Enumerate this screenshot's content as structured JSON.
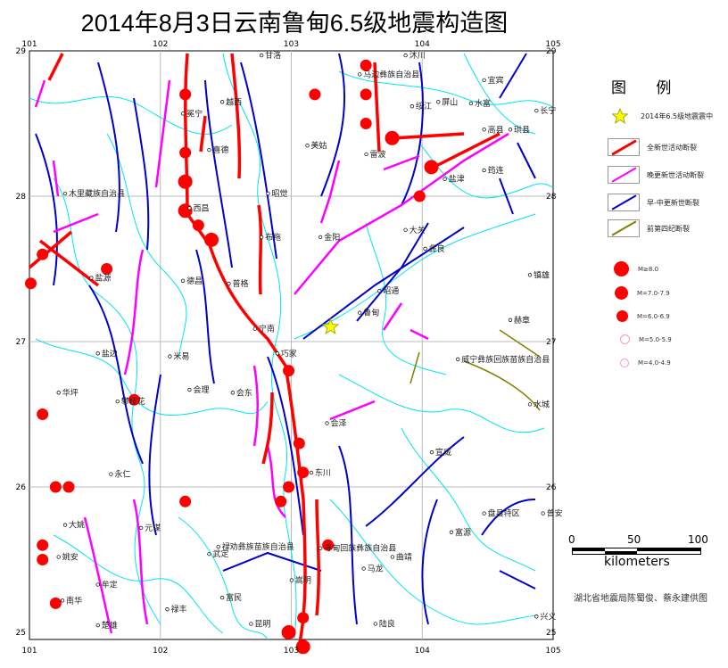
{
  "title": "2014年8月3日云南鲁甸6.5级地震构造图",
  "axes": {
    "lon_ticks": [
      "101",
      "102",
      "103",
      "104",
      "105"
    ],
    "lat_ticks": [
      "29",
      "28",
      "27",
      "26",
      "25"
    ]
  },
  "legend": {
    "title": "图  例",
    "epicenter": {
      "label": "2014年6.5级地震震中",
      "color": "#ffff00"
    },
    "faults": [
      {
        "label": "全新世活动断裂",
        "color": "#ff0000"
      },
      {
        "label": "晚更新世活动断裂",
        "color": "#ff00ff"
      },
      {
        "label": "早-中更新世断裂",
        "color": "#0000cc"
      },
      {
        "label": "前第四纪断裂",
        "color": "#808000"
      }
    ],
    "magnitudes": [
      {
        "label": "M≥8.0",
        "filled": true
      },
      {
        "label": "M=7.0-7.9",
        "filled": true
      },
      {
        "label": "M=6.0-6.9",
        "filled": true
      },
      {
        "label": "M=5.0-5.9",
        "filled": false
      },
      {
        "label": "M=4.0-4.9",
        "filled": false
      }
    ]
  },
  "scale_bar": {
    "ticks": [
      "0",
      "50",
      "100"
    ],
    "unit": "kilometers"
  },
  "credit": "湖北省地震局陈蜀俊、蔡永建供图",
  "epicenter": {
    "lon": 103.3,
    "lat": 27.1
  },
  "earthquakes": [
    {
      "lon": 103.57,
      "lat": 28.9,
      "m": "6.0-6.9"
    },
    {
      "lon": 103.18,
      "lat": 28.7,
      "m": "6.0-6.9"
    },
    {
      "lon": 103.57,
      "lat": 28.7,
      "m": "6.0-6.9"
    },
    {
      "lon": 102.19,
      "lat": 28.7,
      "m": "6.0-6.9"
    },
    {
      "lon": 103.57,
      "lat": 28.5,
      "m": "6.0-6.9"
    },
    {
      "lon": 103.77,
      "lat": 28.4,
      "m": "7.0-7.9"
    },
    {
      "lon": 102.19,
      "lat": 28.3,
      "m": "6.0-6.9"
    },
    {
      "lon": 104.07,
      "lat": 28.2,
      "m": "7.0-7.9"
    },
    {
      "lon": 102.19,
      "lat": 28.1,
      "m": "7.0-7.9"
    },
    {
      "lon": 103.98,
      "lat": 28.0,
      "m": "6.0-6.9"
    },
    {
      "lon": 102.19,
      "lat": 27.9,
      "m": "7.0-7.9"
    },
    {
      "lon": 102.29,
      "lat": 27.8,
      "m": "6.0-6.9"
    },
    {
      "lon": 102.39,
      "lat": 27.7,
      "m": "7.0-7.9"
    },
    {
      "lon": 101.1,
      "lat": 27.6,
      "m": "6.0-6.9"
    },
    {
      "lon": 101.59,
      "lat": 27.5,
      "m": "6.0-6.9"
    },
    {
      "lon": 101.01,
      "lat": 27.4,
      "m": "6.0-6.9"
    },
    {
      "lon": 102.98,
      "lat": 26.8,
      "m": "6.0-6.9"
    },
    {
      "lon": 101.8,
      "lat": 26.6,
      "m": "6.0-6.9"
    },
    {
      "lon": 101.1,
      "lat": 26.5,
      "m": "6.0-6.9"
    },
    {
      "lon": 103.06,
      "lat": 26.3,
      "m": "6.0-6.9"
    },
    {
      "lon": 103.09,
      "lat": 26.1,
      "m": "6.0-6.9"
    },
    {
      "lon": 101.2,
      "lat": 26.0,
      "m": "6.0-6.9"
    },
    {
      "lon": 101.3,
      "lat": 26.0,
      "m": "6.0-6.9"
    },
    {
      "lon": 102.98,
      "lat": 26.0,
      "m": "6.0-6.9"
    },
    {
      "lon": 102.19,
      "lat": 25.9,
      "m": "6.0-6.9"
    },
    {
      "lon": 102.92,
      "lat": 25.9,
      "m": "6.0-6.9"
    },
    {
      "lon": 101.1,
      "lat": 25.6,
      "m": "6.0-6.9"
    },
    {
      "lon": 101.1,
      "lat": 25.5,
      "m": "6.0-6.9"
    },
    {
      "lon": 103.28,
      "lat": 25.6,
      "m": "6.0-6.9"
    },
    {
      "lon": 101.2,
      "lat": 25.2,
      "m": "6.0-6.9"
    },
    {
      "lon": 103.09,
      "lat": 25.1,
      "m": "6.0-6.9"
    },
    {
      "lon": 102.98,
      "lat": 25.0,
      "m": "7.0-7.9"
    },
    {
      "lon": 103.09,
      "lat": 24.9,
      "m": "7.0-7.9"
    }
  ],
  "places": [
    {
      "name": "甘洛",
      "lon": 102.8,
      "lat": 28.95
    },
    {
      "name": "沐川",
      "lon": 103.9,
      "lat": 28.95
    },
    {
      "name": "马边彝族自治县",
      "lon": 103.55,
      "lat": 28.82
    },
    {
      "name": "宜宾",
      "lon": 104.5,
      "lat": 28.78
    },
    {
      "name": "越西",
      "lon": 102.5,
      "lat": 28.63
    },
    {
      "name": "屏山",
      "lon": 104.15,
      "lat": 28.63
    },
    {
      "name": "冕宁",
      "lon": 102.2,
      "lat": 28.55
    },
    {
      "name": "绥江",
      "lon": 103.95,
      "lat": 28.6
    },
    {
      "name": "水富",
      "lon": 104.4,
      "lat": 28.62
    },
    {
      "name": "长宁",
      "lon": 104.9,
      "lat": 28.57
    },
    {
      "name": "雷波",
      "lon": 103.6,
      "lat": 28.27
    },
    {
      "name": "高县",
      "lon": 104.5,
      "lat": 28.44
    },
    {
      "name": "珙县",
      "lon": 104.7,
      "lat": 28.44
    },
    {
      "name": "喜德",
      "lon": 102.4,
      "lat": 28.3
    },
    {
      "name": "美姑",
      "lon": 103.15,
      "lat": 28.33
    },
    {
      "name": "筠连",
      "lon": 104.5,
      "lat": 28.16
    },
    {
      "name": "盐津",
      "lon": 104.2,
      "lat": 28.1
    },
    {
      "name": "昭觉",
      "lon": 102.85,
      "lat": 28.0
    },
    {
      "name": "木里藏族自治县",
      "lon": 101.3,
      "lat": 28.0
    },
    {
      "name": "西昌",
      "lon": 102.25,
      "lat": 27.9
    },
    {
      "name": "布拖",
      "lon": 102.8,
      "lat": 27.7
    },
    {
      "name": "金阳",
      "lon": 103.25,
      "lat": 27.7
    },
    {
      "name": "大关",
      "lon": 103.9,
      "lat": 27.75
    },
    {
      "name": "彝良",
      "lon": 104.05,
      "lat": 27.62
    },
    {
      "name": "盐源",
      "lon": 101.5,
      "lat": 27.42
    },
    {
      "name": "德昌",
      "lon": 102.2,
      "lat": 27.4
    },
    {
      "name": "普格",
      "lon": 102.55,
      "lat": 27.38
    },
    {
      "name": "昭通",
      "lon": 103.7,
      "lat": 27.33
    },
    {
      "name": "镇雄",
      "lon": 104.85,
      "lat": 27.44
    },
    {
      "name": "鲁甸",
      "lon": 103.55,
      "lat": 27.18
    },
    {
      "name": "宁南",
      "lon": 102.75,
      "lat": 27.07
    },
    {
      "name": "巧家",
      "lon": 102.92,
      "lat": 26.9
    },
    {
      "name": "赫章",
      "lon": 104.7,
      "lat": 27.13
    },
    {
      "name": "盐边",
      "lon": 101.55,
      "lat": 26.9
    },
    {
      "name": "米易",
      "lon": 102.1,
      "lat": 26.88
    },
    {
      "name": "威宁彝族回族苗族自治县",
      "lon": 104.3,
      "lat": 26.86
    },
    {
      "name": "华坪",
      "lon": 101.25,
      "lat": 26.63
    },
    {
      "name": "攀枝花",
      "lon": 101.7,
      "lat": 26.57
    },
    {
      "name": "会理",
      "lon": 102.25,
      "lat": 26.65
    },
    {
      "name": "会东",
      "lon": 102.58,
      "lat": 26.63
    },
    {
      "name": "水城",
      "lon": 104.85,
      "lat": 26.55
    },
    {
      "name": "会泽",
      "lon": 103.3,
      "lat": 26.42
    },
    {
      "name": "宣威",
      "lon": 104.1,
      "lat": 26.22
    },
    {
      "name": "永仁",
      "lon": 101.65,
      "lat": 26.07
    },
    {
      "name": "东川",
      "lon": 103.18,
      "lat": 26.08
    },
    {
      "name": "大姚",
      "lon": 101.3,
      "lat": 25.72
    },
    {
      "name": "元谋",
      "lon": 101.88,
      "lat": 25.7
    },
    {
      "name": "盘县特区",
      "lon": 104.5,
      "lat": 25.8
    },
    {
      "name": "普安",
      "lon": 104.95,
      "lat": 25.8
    },
    {
      "name": "富源",
      "lon": 104.25,
      "lat": 25.67
    },
    {
      "name": "姚安",
      "lon": 101.25,
      "lat": 25.5
    },
    {
      "name": "禄劝彝族苗族自治县",
      "lon": 102.47,
      "lat": 25.57
    },
    {
      "name": "寻甸回族彝族自治县",
      "lon": 103.25,
      "lat": 25.56
    },
    {
      "name": "武定",
      "lon": 102.4,
      "lat": 25.52
    },
    {
      "name": "曲靖",
      "lon": 103.8,
      "lat": 25.5
    },
    {
      "name": "牟定",
      "lon": 101.55,
      "lat": 25.31
    },
    {
      "name": "马龙",
      "lon": 103.58,
      "lat": 25.42
    },
    {
      "name": "南华",
      "lon": 101.28,
      "lat": 25.2
    },
    {
      "name": "富民",
      "lon": 102.5,
      "lat": 25.22
    },
    {
      "name": "嵩明",
      "lon": 103.03,
      "lat": 25.34
    },
    {
      "name": "禄丰",
      "lon": 102.08,
      "lat": 25.14
    },
    {
      "name": "昆明",
      "lon": 102.72,
      "lat": 25.04
    },
    {
      "name": "陆良",
      "lon": 103.67,
      "lat": 25.04
    },
    {
      "name": "楚雄",
      "lon": 101.55,
      "lat": 25.03
    },
    {
      "name": "兴义",
      "lon": 104.9,
      "lat": 25.09
    }
  ]
}
